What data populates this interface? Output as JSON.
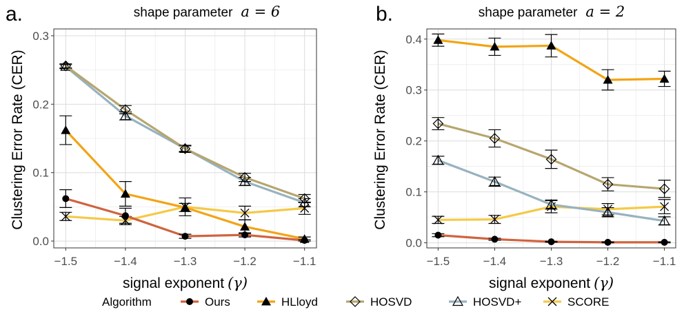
{
  "legend": {
    "title": "Algorithm",
    "position": "bottom",
    "items": [
      {
        "name": "Ours",
        "color": "#d0633f",
        "marker": "circle"
      },
      {
        "name": "HLloyd",
        "color": "#f2a416",
        "marker": "triangle"
      },
      {
        "name": "HOSVD",
        "color": "#b6a66f",
        "marker": "diamond"
      },
      {
        "name": "HOSVD+",
        "color": "#97b2c0",
        "marker": "triangle-open"
      },
      {
        "name": "SCORE",
        "color": "#f4c946",
        "marker": "cross"
      }
    ]
  },
  "chart_data": [
    {
      "type": "line",
      "panel_label": "a.",
      "title_text": "shape parameter",
      "title_math": "a = 6",
      "xlabel_text": "signal exponent",
      "xlabel_math": "(γ)",
      "ylabel": "Clustering Error Rate (CER)",
      "x": [
        -1.5,
        -1.4,
        -1.3,
        -1.2,
        -1.1
      ],
      "x_ticks": [
        "−1.5",
        "−1.4",
        "−1.3",
        "−1.2",
        "−1.1"
      ],
      "xlim": [
        -1.52,
        -1.08
      ],
      "ylim": [
        -0.01,
        0.31
      ],
      "y_ticks": [
        0.0,
        0.1,
        0.2,
        0.3
      ],
      "y_tick_labels": [
        "0.0",
        "0.1",
        "0.2",
        "0.3"
      ],
      "grid": true,
      "series": [
        {
          "name": "SCORE",
          "values": [
            0.036,
            0.03,
            0.05,
            0.041,
            0.048
          ],
          "err": [
            0.006,
            0.006,
            0.013,
            0.01,
            0.009
          ]
        },
        {
          "name": "HOSVD+",
          "values": [
            0.255,
            0.183,
            0.135,
            0.087,
            0.056
          ],
          "err": [
            0.003,
            0.006,
            0.004,
            0.006,
            0.006
          ]
        },
        {
          "name": "HOSVD",
          "values": [
            0.256,
            0.192,
            0.135,
            0.093,
            0.062
          ],
          "err": [
            0.003,
            0.006,
            0.005,
            0.006,
            0.006
          ]
        },
        {
          "name": "HLloyd",
          "values": [
            0.162,
            0.069,
            0.049,
            0.021,
            0.003
          ],
          "err": [
            0.021,
            0.018,
            0.006,
            0.01,
            0.003
          ]
        },
        {
          "name": "Ours",
          "values": [
            0.062,
            0.037,
            0.007,
            0.009,
            0.001
          ],
          "err": [
            0.013,
            0.011,
            0.003,
            0.003,
            0.001
          ]
        }
      ]
    },
    {
      "type": "line",
      "panel_label": "b.",
      "title_text": "shape parameter",
      "title_math": "a = 2",
      "xlabel_text": "signal exponent",
      "xlabel_math": "(γ)",
      "ylabel": "Clustering Error Rate (CER)",
      "x": [
        -1.5,
        -1.4,
        -1.3,
        -1.2,
        -1.1
      ],
      "x_ticks": [
        "−1.5",
        "−1.4",
        "−1.3",
        "−1.2",
        "−1.1"
      ],
      "xlim": [
        -1.52,
        -1.08
      ],
      "ylim": [
        -0.01,
        0.42
      ],
      "y_ticks": [
        0.0,
        0.1,
        0.2,
        0.3,
        0.4
      ],
      "y_tick_labels": [
        "0.0",
        "0.1",
        "0.2",
        "0.3",
        "0.4"
      ],
      "grid": true,
      "series": [
        {
          "name": "SCORE",
          "values": [
            0.045,
            0.046,
            0.071,
            0.066,
            0.071
          ],
          "err": [
            0.007,
            0.008,
            0.012,
            0.011,
            0.014
          ]
        },
        {
          "name": "HOSVD+",
          "values": [
            0.162,
            0.12,
            0.075,
            0.06,
            0.043
          ],
          "err": [
            0.008,
            0.009,
            0.009,
            0.009,
            0.008
          ]
        },
        {
          "name": "HOSVD",
          "values": [
            0.234,
            0.205,
            0.164,
            0.115,
            0.106
          ],
          "err": [
            0.012,
            0.017,
            0.018,
            0.013,
            0.017
          ]
        },
        {
          "name": "HLloyd",
          "values": [
            0.398,
            0.385,
            0.387,
            0.32,
            0.322
          ],
          "err": [
            0.012,
            0.017,
            0.022,
            0.02,
            0.015
          ]
        },
        {
          "name": "Ours",
          "values": [
            0.015,
            0.007,
            0.002,
            0.001,
            0.001
          ],
          "err": [
            0.003,
            0.002,
            0.001,
            0.001,
            0.001
          ]
        }
      ]
    }
  ]
}
